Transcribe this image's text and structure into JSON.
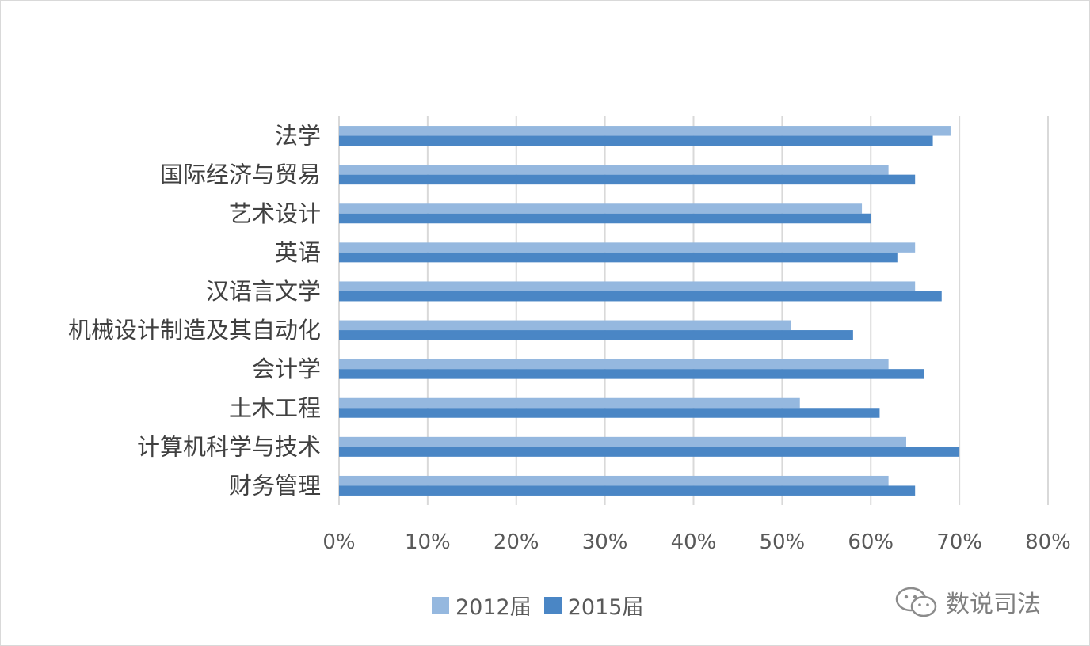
{
  "chart_data": {
    "type": "bar",
    "orientation": "horizontal",
    "categories": [
      "法学",
      "国际经济与贸易",
      "艺术设计",
      "英语",
      "汉语言文学",
      "机械设计制造及其自动化",
      "会计学",
      "土木工程",
      "计算机科学与技术",
      "财务管理"
    ],
    "series": [
      {
        "name": "2012届",
        "color": "#95b8df",
        "values": [
          69,
          62,
          59,
          65,
          65,
          51,
          62,
          52,
          64,
          62
        ]
      },
      {
        "name": "2015届",
        "color": "#4a86c5",
        "values": [
          67,
          65,
          60,
          63,
          68,
          58,
          66,
          61,
          70,
          65
        ]
      }
    ],
    "xlim": [
      0,
      80
    ],
    "xticks": [
      "0%",
      "10%",
      "20%",
      "30%",
      "40%",
      "50%",
      "60%",
      "70%",
      "80%"
    ],
    "unit": "%",
    "grid": true,
    "legend": "bottom"
  },
  "watermark": "数说司法"
}
